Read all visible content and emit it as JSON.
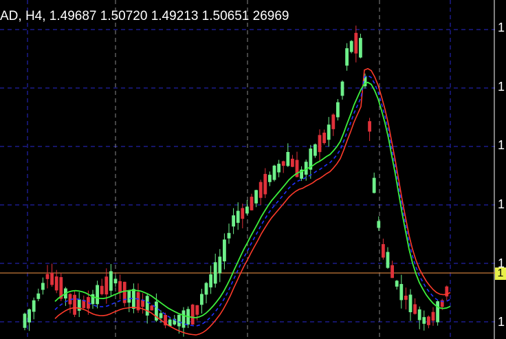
{
  "header": {
    "text": "AD, H4, 1.49687 1.50720 1.49213 1.50651 26969"
  },
  "price_axis": {
    "labels": [
      "1",
      "1",
      "1",
      "1",
      "1",
      "1"
    ]
  },
  "current_price_tag": {
    "label": "1",
    "color": "#e8f04a"
  },
  "colors": {
    "background": "#000000",
    "bull_candle": "#6ef08a",
    "bear_candle": "#e0313a",
    "ma_fast": "#3cf03c",
    "ma_slow": "#ff3b2b",
    "ma_mid_dashed": "#2030ff",
    "grid": "#2a2ad0",
    "price_line": "#c87a3a"
  }
}
